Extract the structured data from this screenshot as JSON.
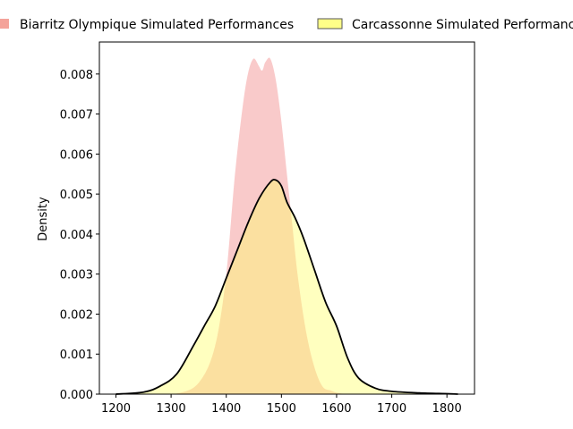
{
  "chart_data": {
    "type": "area",
    "title": "",
    "xlabel": "",
    "ylabel": "Density",
    "xlim": [
      1170,
      1850
    ],
    "ylim": [
      0,
      0.0088
    ],
    "xticks": [
      1200,
      1300,
      1400,
      1500,
      1600,
      1700,
      1800
    ],
    "yticks": [
      0.0,
      0.001,
      0.002,
      0.003,
      0.004,
      0.005,
      0.006,
      0.007,
      0.008
    ],
    "xtick_labels": [
      "1200",
      "1300",
      "1400",
      "1500",
      "1600",
      "1700",
      "1800"
    ],
    "ytick_labels": [
      "0.000",
      "0.001",
      "0.002",
      "0.003",
      "0.004",
      "0.005",
      "0.006",
      "0.007",
      "0.008"
    ],
    "grid": false,
    "legend_position": "top",
    "series": [
      {
        "name": "Biarritz Olympique Simulated Performances",
        "color": "#f08080",
        "fill_opacity": 0.42,
        "x": [
          1300,
          1330,
          1350,
          1370,
          1385,
          1400,
          1415,
          1430,
          1440,
          1450,
          1460,
          1465,
          1470,
          1480,
          1490,
          1500,
          1510,
          1520,
          1530,
          1545,
          1560,
          1575,
          1590,
          1600,
          1620
        ],
        "y": [
          0.0,
          0.0001,
          0.0003,
          0.0008,
          0.0016,
          0.0031,
          0.0055,
          0.0073,
          0.0081,
          0.0084,
          0.0082,
          0.0081,
          0.0083,
          0.0084,
          0.0079,
          0.0069,
          0.0056,
          0.0043,
          0.003,
          0.0016,
          0.0007,
          0.0002,
          0.0001,
          5e-05,
          0.0
        ]
      },
      {
        "name": "Carcassonne Simulated Performances",
        "color": "#ffff66",
        "fill_opacity": 0.42,
        "line_color": "#000000",
        "x": [
          1200,
          1250,
          1280,
          1310,
          1340,
          1360,
          1380,
          1400,
          1420,
          1440,
          1460,
          1480,
          1490,
          1500,
          1510,
          1525,
          1540,
          1560,
          1580,
          1600,
          1620,
          1640,
          1670,
          1700,
          1750,
          1800,
          1820
        ],
        "y": [
          0.0,
          5e-05,
          0.0002,
          0.0005,
          0.0012,
          0.0017,
          0.0022,
          0.0029,
          0.0036,
          0.0043,
          0.0049,
          0.0053,
          0.00535,
          0.0052,
          0.0048,
          0.0044,
          0.0039,
          0.0031,
          0.0023,
          0.0017,
          0.0009,
          0.0004,
          0.00015,
          7e-05,
          3e-05,
          1e-05,
          0.0
        ]
      }
    ]
  }
}
